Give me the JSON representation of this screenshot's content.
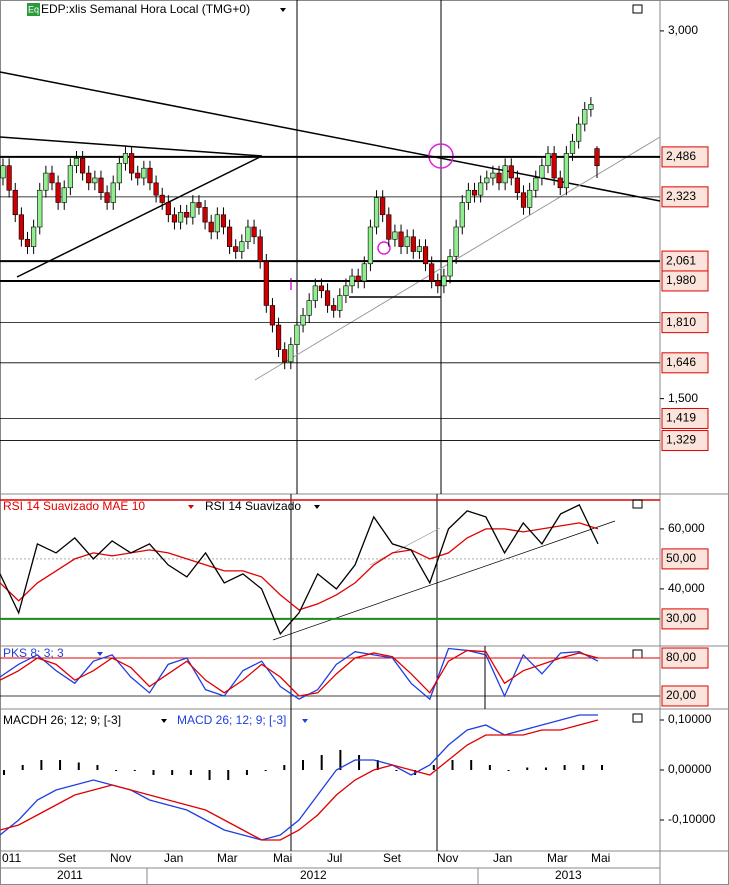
{
  "chart_data": [
    {
      "type": "candlestick",
      "title": "EDP:xlis Semanal Hora Local (TMG+0)",
      "icon": "Eq",
      "up_color": "#90ee90",
      "down_color": "#cc0000",
      "ylim": [
        1.115,
        3.126
      ],
      "yticks": [
        {
          "value": 3.0,
          "label": "3,000"
        },
        {
          "value": 1.5,
          "label": "1,500"
        }
      ],
      "levels": [
        {
          "value": 2.486,
          "label": "2,486"
        },
        {
          "value": 2.323,
          "label": "2,323"
        },
        {
          "value": 2.061,
          "label": "2,061"
        },
        {
          "value": 1.98,
          "label": "1,980"
        },
        {
          "value": 1.81,
          "label": "1,810"
        },
        {
          "value": 1.646,
          "label": "1,646"
        },
        {
          "value": 1.419,
          "label": "1,419"
        },
        {
          "value": 1.329,
          "label": "1,329"
        }
      ],
      "open": [
        2.4,
        2.45,
        2.35,
        2.25,
        2.15,
        2.12,
        2.2,
        2.35,
        2.42,
        2.38,
        2.3,
        2.36,
        2.45,
        2.48,
        2.42,
        2.38,
        2.4,
        2.34,
        2.3,
        2.38,
        2.46,
        2.5,
        2.42,
        2.4,
        2.44,
        2.38,
        2.33,
        2.3,
        2.25,
        2.22,
        2.26,
        2.24,
        2.3,
        2.28,
        2.22,
        2.18,
        2.25,
        2.2,
        2.12,
        2.1,
        2.14,
        2.2,
        2.16,
        2.06,
        1.88,
        1.8,
        1.7,
        1.65,
        1.72,
        1.8,
        1.84,
        1.9,
        1.96,
        1.94,
        1.88,
        1.86,
        1.92,
        1.96,
        2.0,
        1.98,
        2.05,
        2.2,
        2.32,
        2.25,
        2.15,
        2.18,
        2.12,
        2.16,
        2.1,
        2.12,
        2.05,
        1.98,
        1.96,
        2.0,
        2.08,
        2.2,
        2.3,
        2.35,
        2.33,
        2.38,
        2.4,
        2.42,
        2.38,
        2.45,
        2.4,
        2.34,
        2.28,
        2.35,
        2.4,
        2.45,
        2.5,
        2.4,
        2.36,
        2.5,
        2.55,
        2.62,
        2.68,
        2.52
      ],
      "high": [
        2.48,
        2.48,
        2.38,
        2.28,
        2.18,
        2.23,
        2.38,
        2.45,
        2.45,
        2.41,
        2.39,
        2.48,
        2.51,
        2.51,
        2.45,
        2.43,
        2.43,
        2.37,
        2.41,
        2.49,
        2.53,
        2.53,
        2.45,
        2.47,
        2.47,
        2.41,
        2.36,
        2.33,
        2.28,
        2.29,
        2.29,
        2.33,
        2.33,
        2.31,
        2.25,
        2.28,
        2.28,
        2.23,
        2.15,
        2.17,
        2.23,
        2.23,
        2.19,
        2.09,
        1.91,
        1.83,
        1.73,
        1.75,
        1.83,
        1.87,
        1.93,
        1.99,
        1.99,
        1.97,
        1.91,
        1.95,
        1.99,
        2.03,
        2.03,
        2.08,
        2.23,
        2.35,
        2.35,
        2.28,
        2.21,
        2.21,
        2.19,
        2.19,
        2.15,
        2.15,
        2.08,
        2.01,
        2.03,
        2.11,
        2.23,
        2.33,
        2.38,
        2.38,
        2.41,
        2.43,
        2.45,
        2.45,
        2.48,
        2.48,
        2.43,
        2.37,
        2.38,
        2.43,
        2.48,
        2.53,
        2.53,
        2.43,
        2.53,
        2.58,
        2.65,
        2.71,
        2.73,
        2.53
      ],
      "low": [
        2.37,
        2.32,
        2.22,
        2.12,
        2.09,
        2.09,
        2.17,
        2.32,
        2.35,
        2.27,
        2.27,
        2.33,
        2.42,
        2.39,
        2.35,
        2.35,
        2.31,
        2.27,
        2.27,
        2.35,
        2.43,
        2.39,
        2.37,
        2.37,
        2.35,
        2.3,
        2.27,
        2.22,
        2.19,
        2.19,
        2.21,
        2.21,
        2.25,
        2.19,
        2.15,
        2.15,
        2.17,
        2.09,
        2.07,
        2.07,
        2.11,
        2.13,
        2.03,
        1.85,
        1.77,
        1.67,
        1.62,
        1.62,
        1.69,
        1.77,
        1.81,
        1.87,
        1.91,
        1.85,
        1.83,
        1.83,
        1.89,
        1.93,
        1.95,
        1.95,
        2.02,
        2.17,
        2.22,
        2.12,
        2.12,
        2.09,
        2.09,
        2.07,
        2.07,
        2.02,
        1.95,
        1.93,
        1.93,
        1.97,
        2.05,
        2.17,
        2.27,
        2.3,
        2.3,
        2.35,
        2.37,
        2.35,
        2.35,
        2.37,
        2.31,
        2.25,
        2.25,
        2.32,
        2.37,
        2.42,
        2.37,
        2.33,
        2.33,
        2.47,
        2.52,
        2.59,
        2.65,
        2.4
      ],
      "close": [
        2.45,
        2.35,
        2.25,
        2.15,
        2.12,
        2.2,
        2.35,
        2.42,
        2.38,
        2.3,
        2.36,
        2.45,
        2.48,
        2.42,
        2.38,
        2.4,
        2.34,
        2.3,
        2.38,
        2.46,
        2.5,
        2.42,
        2.4,
        2.44,
        2.38,
        2.33,
        2.3,
        2.25,
        2.22,
        2.26,
        2.24,
        2.3,
        2.28,
        2.22,
        2.18,
        2.25,
        2.2,
        2.12,
        2.1,
        2.14,
        2.2,
        2.16,
        2.06,
        1.88,
        1.8,
        1.7,
        1.65,
        1.72,
        1.8,
        1.84,
        1.9,
        1.96,
        1.94,
        1.88,
        1.86,
        1.92,
        1.96,
        2.0,
        1.98,
        2.05,
        2.2,
        2.32,
        2.25,
        2.15,
        2.18,
        2.12,
        2.16,
        2.1,
        2.12,
        2.05,
        1.98,
        1.96,
        2.0,
        2.08,
        2.2,
        2.3,
        2.35,
        2.33,
        2.38,
        2.4,
        2.42,
        2.38,
        2.45,
        2.4,
        2.34,
        2.28,
        2.35,
        2.4,
        2.45,
        2.5,
        2.4,
        2.36,
        2.5,
        2.55,
        2.62,
        2.68,
        2.7,
        2.45
      ]
    },
    {
      "type": "line",
      "ylim": [
        21.3,
        71.3
      ],
      "yticks": [
        {
          "value": 60,
          "label": "60,000"
        },
        {
          "value": 40,
          "label": "40,000"
        }
      ],
      "levels": [
        {
          "value": 50,
          "label": "50,00"
        },
        {
          "value": 30,
          "label": "30,00"
        }
      ],
      "series": [
        {
          "name": "RSI 14 Suavizado MAE 10",
          "color": "#e00000",
          "values": [
            42,
            36,
            42,
            46,
            50,
            52,
            51,
            52,
            53,
            52,
            50,
            48,
            46,
            46,
            44,
            38,
            33,
            35,
            38,
            42,
            48,
            52,
            53,
            50,
            52,
            57,
            60,
            60,
            59,
            60,
            61,
            62,
            60
          ]
        },
        {
          "name": "RSI 14 Suavizado",
          "color": "#000000",
          "values": [
            45,
            32,
            55,
            52,
            57,
            50,
            56,
            52,
            55,
            48,
            44,
            52,
            42,
            45,
            40,
            25,
            32,
            45,
            40,
            48,
            64,
            55,
            53,
            42,
            60,
            66,
            64,
            52,
            62,
            55,
            65,
            68,
            55
          ]
        }
      ]
    },
    {
      "type": "line",
      "ylim": [
        1,
        97.4
      ],
      "levels": [
        {
          "value": 80,
          "label": "80,00"
        },
        {
          "value": 20,
          "label": "20,00"
        }
      ],
      "series": [
        {
          "name": "PKS 8; 3; 3",
          "color": "#1f3fe0",
          "values": [
            50,
            70,
            85,
            60,
            40,
            75,
            85,
            50,
            25,
            70,
            80,
            30,
            20,
            60,
            75,
            35,
            15,
            30,
            70,
            90,
            85,
            80,
            40,
            15,
            95,
            92,
            85,
            20,
            85,
            55,
            88,
            90,
            75
          ]
        },
        {
          "color": "#e00000",
          "values": [
            45,
            60,
            80,
            70,
            45,
            60,
            80,
            65,
            35,
            55,
            75,
            45,
            25,
            45,
            70,
            50,
            20,
            25,
            55,
            80,
            88,
            82,
            55,
            25,
            75,
            92,
            90,
            40,
            60,
            70,
            80,
            88,
            80
          ]
        }
      ]
    },
    {
      "type": "macd",
      "ylim": [
        -0.16,
        0.12
      ],
      "yticks": [
        {
          "value": 0.1,
          "label": "0,10000"
        },
        {
          "value": 0,
          "label": "0,00000"
        },
        {
          "value": -0.1,
          "label": "-0,10000"
        }
      ],
      "histogram": {
        "name": "MACDH 26; 12; 9; [-3]",
        "color": "#000000",
        "values": [
          -0.01,
          0.01,
          0.02,
          0.02,
          0.015,
          0.01,
          0,
          0,
          -0.01,
          -0.01,
          -0.01,
          -0.02,
          -0.02,
          -0.01,
          0,
          0.01,
          0.02,
          0.03,
          0.04,
          0.03,
          0.02,
          0,
          -0.01,
          0.01,
          0.02,
          0.02,
          0.01,
          0,
          0.005,
          0.005,
          0.01,
          0.01,
          0.01
        ]
      },
      "series": [
        {
          "name": "MACD 26; 12; 9; [-3]",
          "color": "#1f3fe0",
          "values": [
            -0.13,
            -0.1,
            -0.06,
            -0.04,
            -0.03,
            -0.02,
            -0.03,
            -0.04,
            -0.06,
            -0.07,
            -0.08,
            -0.1,
            -0.12,
            -0.13,
            -0.14,
            -0.13,
            -0.1,
            -0.05,
            0,
            0.02,
            0.02,
            0.01,
            -0.01,
            0.01,
            0.05,
            0.08,
            0.09,
            0.07,
            0.08,
            0.09,
            0.1,
            0.11,
            0.11
          ]
        },
        {
          "color": "#e00000",
          "values": [
            -0.12,
            -0.11,
            -0.09,
            -0.07,
            -0.05,
            -0.04,
            -0.03,
            -0.04,
            -0.05,
            -0.06,
            -0.07,
            -0.08,
            -0.1,
            -0.12,
            -0.14,
            -0.14,
            -0.12,
            -0.09,
            -0.05,
            -0.02,
            0,
            0.01,
            0,
            -0.01,
            0.02,
            0.05,
            0.07,
            0.07,
            0.07,
            0.08,
            0.08,
            0.09,
            0.1
          ]
        }
      ],
      "x_labels": [
        "011",
        "Set",
        "Nov",
        "Jan",
        "Mar",
        "Mai",
        "Jul",
        "Set",
        "Nov",
        "Jan",
        "Mar",
        "Mai"
      ],
      "year_labels": [
        "2011",
        "2012",
        "2013"
      ]
    }
  ]
}
